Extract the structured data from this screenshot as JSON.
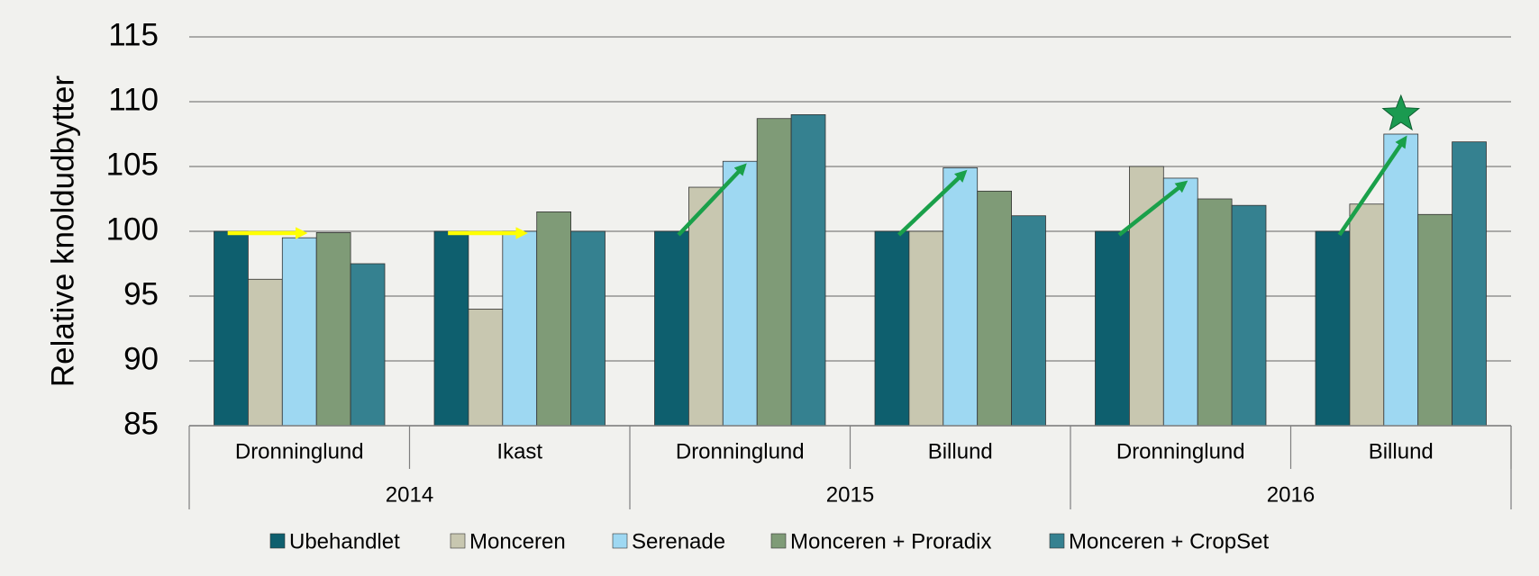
{
  "chart_data": {
    "type": "bar",
    "y_axis_label": "Relative knoldudbytter",
    "category_groups": [
      {
        "name": "2014",
        "categories": [
          "Dronninglund",
          "Ikast"
        ]
      },
      {
        "name": "2015",
        "categories": [
          "Dronninglund",
          "Billund"
        ]
      },
      {
        "name": "2016",
        "categories": [
          "Dronninglund",
          "Billund"
        ]
      }
    ],
    "series": [
      {
        "name": "Ubehandlet",
        "color": "#0e5f6e",
        "values": [
          100,
          100,
          100,
          100,
          100,
          100
        ]
      },
      {
        "name": "Monceren",
        "color": "#c8c7b0",
        "values": [
          96.3,
          94.0,
          103.4,
          100,
          105,
          102.1
        ]
      },
      {
        "name": "Serenade",
        "color": "#9ed8f2",
        "values": [
          99.5,
          100,
          105.4,
          104.9,
          104.1,
          107.5
        ]
      },
      {
        "name": "Monceren + Proradix",
        "color": "#7f9b77",
        "values": [
          99.9,
          101.5,
          108.7,
          103.1,
          102.5,
          101.3
        ]
      },
      {
        "name": "Monceren + CropSet",
        "color": "#358190",
        "values": [
          97.5,
          100,
          109,
          101.2,
          102,
          106.9
        ]
      }
    ],
    "ylim": [
      85,
      115
    ],
    "yticks": [
      85,
      90,
      95,
      100,
      105,
      110,
      115
    ],
    "grid": true
  }
}
